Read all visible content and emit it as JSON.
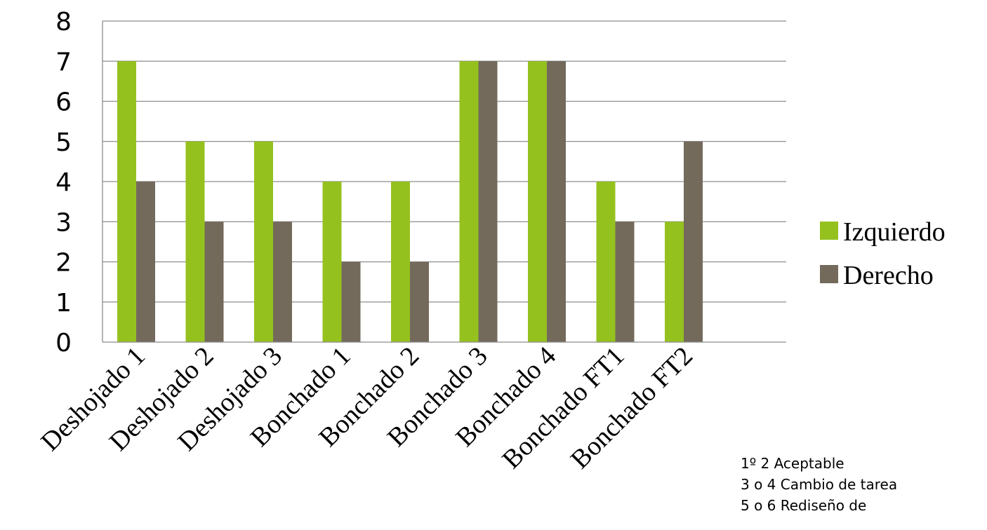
{
  "chart_data": {
    "type": "bar",
    "categories": [
      "Deshojado 1",
      "Deshojado 2",
      "Deshojado 3",
      "Bonchado 1",
      "Bonchado 2",
      "Bonchado 3",
      "Bonchado 4",
      "Bonchado FT1",
      "Bonchado FT2"
    ],
    "series": [
      {
        "name": "Izquierdo",
        "color": "#95c11f",
        "values": [
          7,
          5,
          5,
          4,
          4,
          7,
          7,
          4,
          3
        ]
      },
      {
        "name": "Derecho",
        "color": "#736a5c",
        "values": [
          4,
          3,
          3,
          2,
          2,
          7,
          7,
          3,
          5
        ]
      }
    ],
    "yticks": [
      "0",
      "1",
      "2",
      "3",
      "4",
      "5",
      "6",
      "7",
      "8"
    ],
    "ylim": [
      0,
      8
    ],
    "grid": true,
    "legend_position": "right"
  },
  "note": {
    "lines": [
      "1º 2  Aceptable",
      "3 o 4 Cambio de tarea",
      "5 o 6 Rediseño de"
    ]
  }
}
